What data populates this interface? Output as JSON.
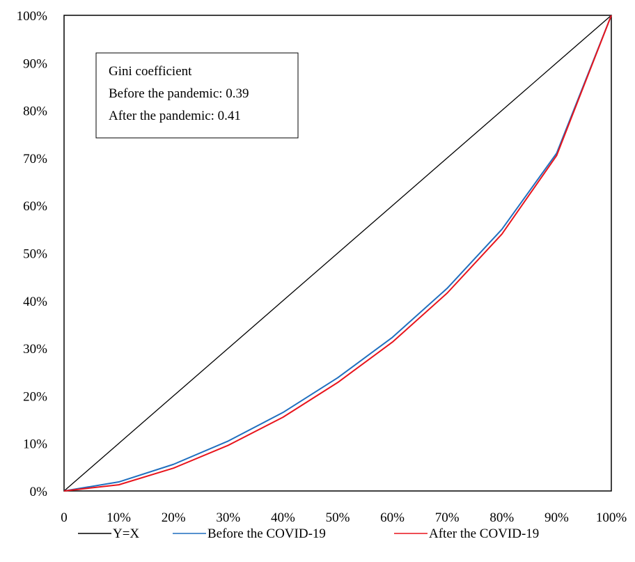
{
  "chart_data": {
    "type": "line",
    "title": "",
    "xlabel": "",
    "ylabel": "",
    "xlim": [
      0,
      100
    ],
    "ylim": [
      0,
      100
    ],
    "x_tick_labels": [
      "0",
      "10%",
      "20%",
      "30%",
      "40%",
      "50%",
      "60%",
      "70%",
      "80%",
      "90%",
      "100%"
    ],
    "y_tick_labels": [
      "0%",
      "10%",
      "20%",
      "30%",
      "40%",
      "50%",
      "60%",
      "70%",
      "80%",
      "90%",
      "100%"
    ],
    "grid": false,
    "legend_position": "bottom",
    "x": [
      0,
      10,
      20,
      30,
      40,
      50,
      60,
      70,
      80,
      90,
      100
    ],
    "series": [
      {
        "name": "Y=X",
        "color": "#000000",
        "values": [
          0,
          10,
          20,
          30,
          40,
          50,
          60,
          70,
          80,
          90,
          100
        ]
      },
      {
        "name": "Before the COVID-19",
        "color": "#1f6fbf",
        "values": [
          0,
          1.9,
          5.6,
          10.5,
          16.5,
          23.8,
          32.3,
          42.6,
          55.0,
          71.0,
          100
        ]
      },
      {
        "name": "After the COVID-19",
        "color": "#e8141c",
        "values": [
          0,
          1.3,
          4.8,
          9.6,
          15.5,
          22.8,
          31.3,
          41.6,
          54.0,
          70.5,
          100
        ]
      }
    ],
    "annotation": {
      "lines": [
        "Gini coefficient",
        "Before the pandemic: 0.39",
        "After the pandemic: 0.41"
      ]
    }
  }
}
